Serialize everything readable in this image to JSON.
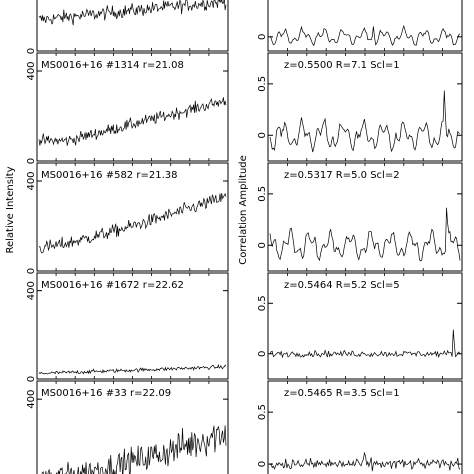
{
  "chart_data": [
    {
      "type": "line",
      "ylabel": "Relative Intensity",
      "panels": [
        {
          "label": "",
          "ylim": [
            0,
            500
          ],
          "yticks": [
            0
          ],
          "visible_fraction_top": true
        },
        {
          "label": "MS0016+16  #1314  r=21.08",
          "ylim": [
            0,
            480
          ],
          "yticks": [
            0,
            400
          ]
        },
        {
          "label": "MS0016+16  #582  r=21.38",
          "ylim": [
            0,
            480
          ],
          "yticks": [
            0,
            400
          ]
        },
        {
          "label": "MS0016+16  #1672  r=22.62",
          "ylim": [
            0,
            480
          ],
          "yticks": [
            0,
            400
          ]
        },
        {
          "label": "MS0016+16  #33  r=22.09",
          "ylim": [
            0,
            480
          ],
          "yticks": [
            0,
            400
          ]
        }
      ]
    },
    {
      "type": "line",
      "ylabel": "Correlation Amplitude",
      "panels": [
        {
          "label": "",
          "ylim": [
            -0.25,
            1.0
          ],
          "yticks": [
            0
          ]
        },
        {
          "label": "z=0.5500  R=7.1  Scl=1",
          "ylim": [
            -0.25,
            0.8
          ],
          "yticks": [
            0,
            0.5
          ]
        },
        {
          "label": "z=0.5317  R=5.0  Scl=2",
          "ylim": [
            -0.25,
            0.8
          ],
          "yticks": [
            0,
            0.5
          ]
        },
        {
          "label": "z=0.5464  R=5.2  Scl=5",
          "ylim": [
            -0.25,
            0.8
          ],
          "yticks": [
            0,
            0.5
          ]
        },
        {
          "label": "z=0.5465  R=3.5  Scl=1",
          "ylim": [
            -0.25,
            0.8
          ],
          "yticks": [
            0,
            0.5
          ]
        }
      ]
    }
  ]
}
